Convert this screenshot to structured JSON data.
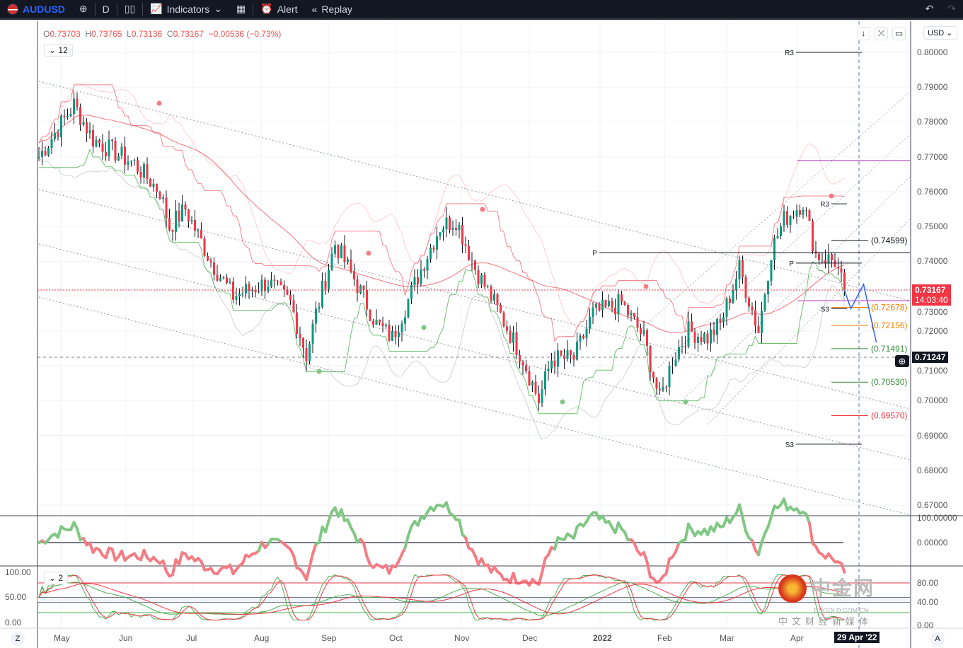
{
  "toolbar": {
    "symbol": "AUDUSD",
    "interval": "D",
    "indicators": "Indicators",
    "alert": "Alert",
    "replay": "Replay"
  },
  "legend": {
    "o_label": "O",
    "o": "0.73703",
    "h_label": "H",
    "h": "0.73765",
    "l_label": "L",
    "l": "0.73136",
    "c_label": "C",
    "c": "0.73167",
    "change": "−0.00536 (−0.73%)",
    "indicator_count": "12",
    "stoch_count": "2"
  },
  "currency": "USD",
  "price_axis": [
    "0.80000",
    "0.79000",
    "0.78000",
    "0.77000",
    "0.76000",
    "0.75000",
    "0.74000",
    "0.73000",
    "0.72000",
    "0.71000",
    "0.70000",
    "0.69000",
    "0.68000",
    "0.67000"
  ],
  "last_price": {
    "value": "0.73167",
    "countdown": "14:03:40"
  },
  "crosshair": {
    "price": "0.71247",
    "date": "29 Apr '22"
  },
  "levels": [
    {
      "label": "R3",
      "price": 0.8
    },
    {
      "label": "P",
      "price": 0.7425
    },
    {
      "label": "P",
      "price": 0.7395
    },
    {
      "label": "R3",
      "price": 0.7565
    },
    {
      "label": "S3",
      "price": 0.7264
    },
    {
      "label": "S3",
      "price": 0.6875
    }
  ],
  "fib_labels": [
    {
      "text": "(0.74599)",
      "price": 0.74599,
      "color": "#131722"
    },
    {
      "text": "(0.72678)",
      "price": 0.72678,
      "color": "#f57c00"
    },
    {
      "text": "(0.72156)",
      "price": 0.72156,
      "color": "#f57c00"
    },
    {
      "text": "(0.71491)",
      "price": 0.71491,
      "color": "#388e3c"
    },
    {
      "text": "(0.70530)",
      "price": 0.7053,
      "color": "#388e3c"
    },
    {
      "text": "(0.69570)",
      "price": 0.6957,
      "color": "#f23645"
    }
  ],
  "osc_axis": [
    "100.00000",
    "0.00000"
  ],
  "stoch_axis_left": [
    "100.00",
    "50.00",
    "0.00"
  ],
  "stoch_axis_right": [
    "80.00",
    "40.00",
    "0.00"
  ],
  "time_axis": [
    "May",
    "Jun",
    "Jul",
    "Aug",
    "Sep",
    "Oct",
    "Nov",
    "Dec",
    "2022",
    "Feb",
    "Mar",
    "Apr"
  ],
  "watermark": {
    "name": "中金网",
    "site": "CNGOLD.COM.CN",
    "sub": "中文财经新媒体"
  },
  "zoom_button": "Z",
  "auto_button": "A",
  "colors": {
    "up": "#089981",
    "down": "#f23645",
    "bg": "#ffffff"
  },
  "chart_data": {
    "type": "candlestick",
    "note": "approximate close path [trading-day index, price]",
    "waypoints": [
      [
        0,
        0.77
      ],
      [
        11,
        0.785
      ],
      [
        17,
        0.775
      ],
      [
        30,
        0.768
      ],
      [
        38,
        0.76
      ],
      [
        41,
        0.75
      ],
      [
        46,
        0.755
      ],
      [
        54,
        0.74
      ],
      [
        61,
        0.73
      ],
      [
        72,
        0.734
      ],
      [
        79,
        0.728
      ],
      [
        84,
        0.713
      ],
      [
        87,
        0.725
      ],
      [
        93,
        0.745
      ],
      [
        99,
        0.735
      ],
      [
        106,
        0.722
      ],
      [
        111,
        0.718
      ],
      [
        121,
        0.74
      ],
      [
        126,
        0.75
      ],
      [
        131,
        0.752
      ],
      [
        137,
        0.738
      ],
      [
        143,
        0.728
      ],
      [
        152,
        0.712
      ],
      [
        157,
        0.7
      ],
      [
        161,
        0.712
      ],
      [
        168,
        0.712
      ],
      [
        174,
        0.725
      ],
      [
        183,
        0.728
      ],
      [
        190,
        0.718
      ],
      [
        195,
        0.7
      ],
      [
        199,
        0.712
      ],
      [
        204,
        0.72
      ],
      [
        210,
        0.718
      ],
      [
        214,
        0.722
      ],
      [
        220,
        0.738
      ],
      [
        226,
        0.72
      ],
      [
        230,
        0.743
      ],
      [
        234,
        0.752
      ],
      [
        240,
        0.757
      ],
      [
        244,
        0.742
      ],
      [
        250,
        0.74
      ],
      [
        253,
        0.73167
      ]
    ],
    "projection": [
      [
        253,
        0.73167
      ],
      [
        255,
        0.7264
      ],
      [
        259,
        0.7334
      ],
      [
        263,
        0.7167
      ]
    ],
    "ylim": [
      0.665,
      0.805
    ]
  }
}
